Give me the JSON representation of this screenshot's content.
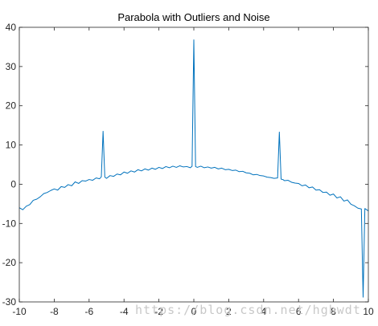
{
  "chart_data": {
    "type": "line",
    "title": "Parabola with Outliers and Noise",
    "xlabel": "",
    "ylabel": "",
    "xlim": [
      -10,
      10
    ],
    "ylim": [
      -30,
      40
    ],
    "xticks": [
      -10,
      -8,
      -6,
      -4,
      -2,
      0,
      2,
      4,
      6,
      8,
      10
    ],
    "yticks": [
      -30,
      -20,
      -10,
      0,
      10,
      20,
      30,
      40
    ],
    "grid": false,
    "legend": "none",
    "series": [
      {
        "color": "#0072bd",
        "x": [
          -10,
          -9.8,
          -9.6,
          -9.4,
          -9.2,
          -9,
          -8.8,
          -8.6,
          -8.4,
          -8.2,
          -8,
          -7.8,
          -7.6,
          -7.4,
          -7.2,
          -7,
          -6.8,
          -6.6,
          -6.4,
          -6.2,
          -6,
          -5.8,
          -5.6,
          -5.4,
          -5.3,
          -5.2,
          -5.1,
          -5,
          -4.8,
          -4.6,
          -4.4,
          -4.2,
          -4,
          -3.8,
          -3.6,
          -3.4,
          -3.2,
          -3,
          -2.8,
          -2.6,
          -2.4,
          -2.2,
          -2,
          -1.8,
          -1.6,
          -1.4,
          -1.2,
          -1,
          -0.8,
          -0.6,
          -0.4,
          -0.2,
          -0.1,
          0,
          0.1,
          0.2,
          0.4,
          0.6,
          0.8,
          1,
          1.2,
          1.4,
          1.6,
          1.8,
          2,
          2.2,
          2.4,
          2.6,
          2.8,
          3,
          3.2,
          3.4,
          3.6,
          3.8,
          4,
          4.2,
          4.4,
          4.6,
          4.8,
          4.9,
          5,
          5.1,
          5.2,
          5.4,
          5.6,
          5.8,
          6,
          6.2,
          6.4,
          6.6,
          6.8,
          7,
          7.2,
          7.4,
          7.6,
          7.8,
          8,
          8.2,
          8.4,
          8.6,
          8.8,
          9,
          9.2,
          9.4,
          9.6,
          9.7,
          9.8,
          9.9,
          10
        ],
        "y": [
          -6,
          -6.5,
          -5.6,
          -5.2,
          -4.1,
          -3.8,
          -3.2,
          -2.4,
          -2.1,
          -1.6,
          -1.2,
          -1.5,
          -0.6,
          -0.8,
          -0.1,
          -0.4,
          0.6,
          0.2,
          0.9,
          0.8,
          1.2,
          1.0,
          1.6,
          1.4,
          1.9,
          13.5,
          1.8,
          1.5,
          2.2,
          2.0,
          2.6,
          2.4,
          3.1,
          2.8,
          3.4,
          3.1,
          3.7,
          3.4,
          3.9,
          3.6,
          4.1,
          3.8,
          4.3,
          4.0,
          4.5,
          4.2,
          4.6,
          4.3,
          4.7,
          4.4,
          4.5,
          4.2,
          4.6,
          36.8,
          4.5,
          4.3,
          4.6,
          4.2,
          4.4,
          4.1,
          4.3,
          3.9,
          4.1,
          3.7,
          3.8,
          3.5,
          3.6,
          3.2,
          3.3,
          2.9,
          2.8,
          2.4,
          2.5,
          2.2,
          2.1,
          1.8,
          1.7,
          1.5,
          1.6,
          13.3,
          1.3,
          1.2,
          0.9,
          1.0,
          0.5,
          0.3,
          0.2,
          -0.4,
          -0.2,
          -0.9,
          -0.7,
          -1.5,
          -1.4,
          -2.1,
          -2.0,
          -2.8,
          -2.5,
          -3.5,
          -3.2,
          -4.3,
          -4.0,
          -5.1,
          -5.5,
          -6.1,
          -6.3,
          -28.8,
          -6.2,
          -6.5,
          -6.8
        ]
      }
    ]
  },
  "watermark": "https://blog.csdn.net/hgbwdt"
}
